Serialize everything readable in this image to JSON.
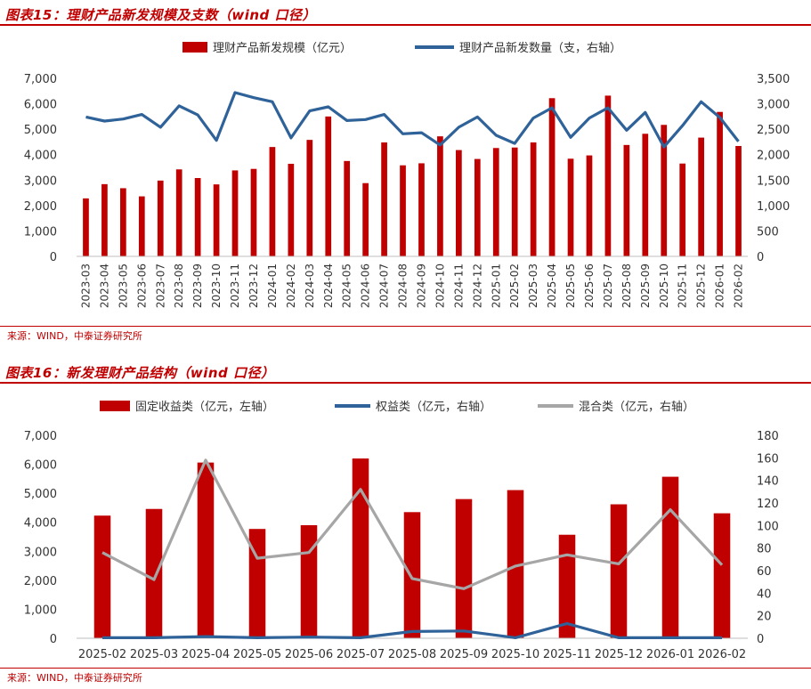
{
  "figures": [
    {
      "title": "图表15：理财产品新发规模及支数（wind 口径）",
      "source": "来源：WIND，中泰证券研究所"
    },
    {
      "title": "图表16：新发理财产品结构（wind 口径）",
      "source": "来源：WIND，中泰证券研究所"
    }
  ],
  "chart_data": [
    {
      "type": "bar",
      "categories": [
        "2023-03",
        "2023-04",
        "2023-05",
        "2023-06",
        "2023-07",
        "2023-08",
        "2023-09",
        "2023-10",
        "2023-11",
        "2023-12",
        "2024-01",
        "2024-02",
        "2024-03",
        "2024-04",
        "2024-05",
        "2024-06",
        "2024-07",
        "2024-08",
        "2024-09",
        "2024-10",
        "2024-11",
        "2024-12",
        "2025-01",
        "2025-02",
        "2025-03",
        "2025-04",
        "2025-05",
        "2025-06",
        "2025-07",
        "2025-08",
        "2025-09",
        "2025-10",
        "2025-11",
        "2025-12",
        "2026-01",
        "2026-02"
      ],
      "series": [
        {
          "name": "理财产品新发规模（亿元）",
          "kind": "bar",
          "axis": "left",
          "color": "#c00000",
          "values": [
            2280,
            2840,
            2680,
            2360,
            2980,
            3420,
            3080,
            2830,
            3380,
            3440,
            4300,
            3640,
            4580,
            5500,
            3750,
            2880,
            4480,
            3580,
            3660,
            4720,
            4180,
            3830,
            4260,
            4280,
            4480,
            6220,
            3840,
            3970,
            6320,
            4380,
            4820,
            5170,
            3650,
            4670,
            5680,
            4340
          ]
        },
        {
          "name": "理财产品新发数量（支，右轴）",
          "kind": "line",
          "axis": "right",
          "color": "#2e6299",
          "values": [
            2740,
            2660,
            2700,
            2790,
            2540,
            2960,
            2780,
            2280,
            3220,
            3120,
            3040,
            2330,
            2860,
            2940,
            2670,
            2690,
            2790,
            2410,
            2430,
            2190,
            2540,
            2740,
            2380,
            2220,
            2720,
            2920,
            2340,
            2720,
            2920,
            2480,
            2830,
            2150,
            2570,
            3040,
            2730,
            2260
          ]
        }
      ],
      "ylim_left": [
        0,
        7000
      ],
      "yticks_left": [
        "0",
        "1,000",
        "2,000",
        "3,000",
        "4,000",
        "5,000",
        "6,000",
        "7,000"
      ],
      "ylim_right": [
        0,
        3500
      ],
      "yticks_right": [
        "0",
        "500",
        "1,000",
        "1,500",
        "2,000",
        "2,500",
        "3,000",
        "3,500"
      ],
      "legend": "top-center",
      "grid": false
    },
    {
      "type": "bar",
      "categories": [
        "2025-02",
        "2025-03",
        "2025-04",
        "2025-05",
        "2025-06",
        "2025-07",
        "2025-08",
        "2025-09",
        "2025-10",
        "2025-11",
        "2025-12",
        "2026-01",
        "2026-02"
      ],
      "series": [
        {
          "name": "固定收益类（亿元，左轴）",
          "kind": "bar",
          "axis": "left",
          "color": "#c00000",
          "values": [
            4230,
            4460,
            6060,
            3770,
            3900,
            6200,
            4350,
            4800,
            5110,
            3570,
            4620,
            5570,
            4310
          ]
        },
        {
          "name": "权益类（亿元，右轴）",
          "kind": "line",
          "axis": "right",
          "color": "#2e6299",
          "values": [
            0.5,
            0.5,
            1.5,
            0.5,
            1,
            0.5,
            6,
            6.5,
            0.5,
            13,
            0.5,
            0.5,
            0.5
          ]
        },
        {
          "name": "混合类（亿元，右轴）",
          "kind": "line",
          "axis": "right",
          "color": "#a6a6a6",
          "values": [
            76,
            52,
            158,
            71,
            76,
            132,
            53,
            44,
            64,
            74,
            66,
            114,
            65
          ]
        }
      ],
      "ylim_left": [
        0,
        7000
      ],
      "yticks_left": [
        "0",
        "1,000",
        "2,000",
        "3,000",
        "4,000",
        "5,000",
        "6,000",
        "7,000"
      ],
      "ylim_right": [
        0,
        180
      ],
      "yticks_right": [
        "0",
        "20",
        "40",
        "60",
        "80",
        "100",
        "120",
        "140",
        "160",
        "180"
      ],
      "legend": "top-center",
      "grid": false
    }
  ]
}
